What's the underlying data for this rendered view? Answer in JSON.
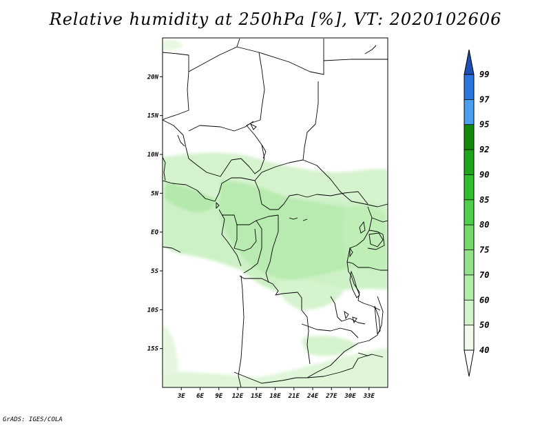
{
  "title": "Relative humidity at 250hPa [%], VT: 2020102606",
  "credit": "GrADS: IGES/COLA",
  "map": {
    "lon_range": [
      0,
      36
    ],
    "lat_range": [
      -20,
      25
    ],
    "lon_ticks": [
      {
        "value": 3,
        "label": "3E"
      },
      {
        "value": 6,
        "label": "6E"
      },
      {
        "value": 9,
        "label": "9E"
      },
      {
        "value": 12,
        "label": "12E"
      },
      {
        "value": 15,
        "label": "15E"
      },
      {
        "value": 18,
        "label": "18E"
      },
      {
        "value": 21,
        "label": "21E"
      },
      {
        "value": 24,
        "label": "24E"
      },
      {
        "value": 27,
        "label": "27E"
      },
      {
        "value": 30,
        "label": "30E"
      },
      {
        "value": 33,
        "label": "33E"
      }
    ],
    "lat_ticks": [
      {
        "value": 20,
        "label": "20N"
      },
      {
        "value": 15,
        "label": "15N"
      },
      {
        "value": 10,
        "label": "10N"
      },
      {
        "value": 5,
        "label": "5N"
      },
      {
        "value": 0,
        "label": "EQ"
      },
      {
        "value": -5,
        "label": "5S"
      },
      {
        "value": -10,
        "label": "10S"
      },
      {
        "value": -15,
        "label": "15S"
      }
    ]
  },
  "colorbar": {
    "levels": [
      "40",
      "50",
      "60",
      "70",
      "75",
      "80",
      "85",
      "90",
      "92",
      "95",
      "97",
      "99"
    ],
    "colors": [
      "#f0fbec",
      "#d3f3cb",
      "#b3ecab",
      "#93e28b",
      "#72d96a",
      "#4fcf4c",
      "#32bf2e",
      "#1fa51c",
      "#118a0e",
      "#4a9ff0",
      "#2a76de",
      "#1a56c8"
    ],
    "under_color": "#ffffff",
    "over_color": "#1e4fb6"
  },
  "colors": {
    "land_border": "#000000",
    "frame": "#000000"
  }
}
